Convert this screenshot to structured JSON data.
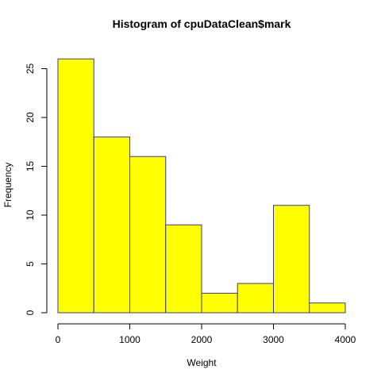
{
  "chart_data": {
    "type": "bar",
    "title": "Histogram of cpuDataClean$mark",
    "xlabel": "Weight",
    "ylabel": "Frequency",
    "bins": [
      {
        "start": 0,
        "end": 500,
        "count": 26
      },
      {
        "start": 500,
        "end": 1000,
        "count": 18
      },
      {
        "start": 1000,
        "end": 1500,
        "count": 16
      },
      {
        "start": 1500,
        "end": 2000,
        "count": 9
      },
      {
        "start": 2000,
        "end": 2500,
        "count": 2
      },
      {
        "start": 2500,
        "end": 3000,
        "count": 3
      },
      {
        "start": 3000,
        "end": 3500,
        "count": 11
      },
      {
        "start": 3500,
        "end": 4000,
        "count": 1
      }
    ],
    "xlim": [
      0,
      4000
    ],
    "ylim": [
      0,
      26
    ],
    "xticks": [
      "0",
      "1000",
      "2000",
      "3000",
      "4000"
    ],
    "yticks": [
      "0",
      "5",
      "10",
      "15",
      "20",
      "25"
    ],
    "grid": false,
    "bar_color": "#ffff00",
    "bar_border_color": "#3b3b8f"
  }
}
